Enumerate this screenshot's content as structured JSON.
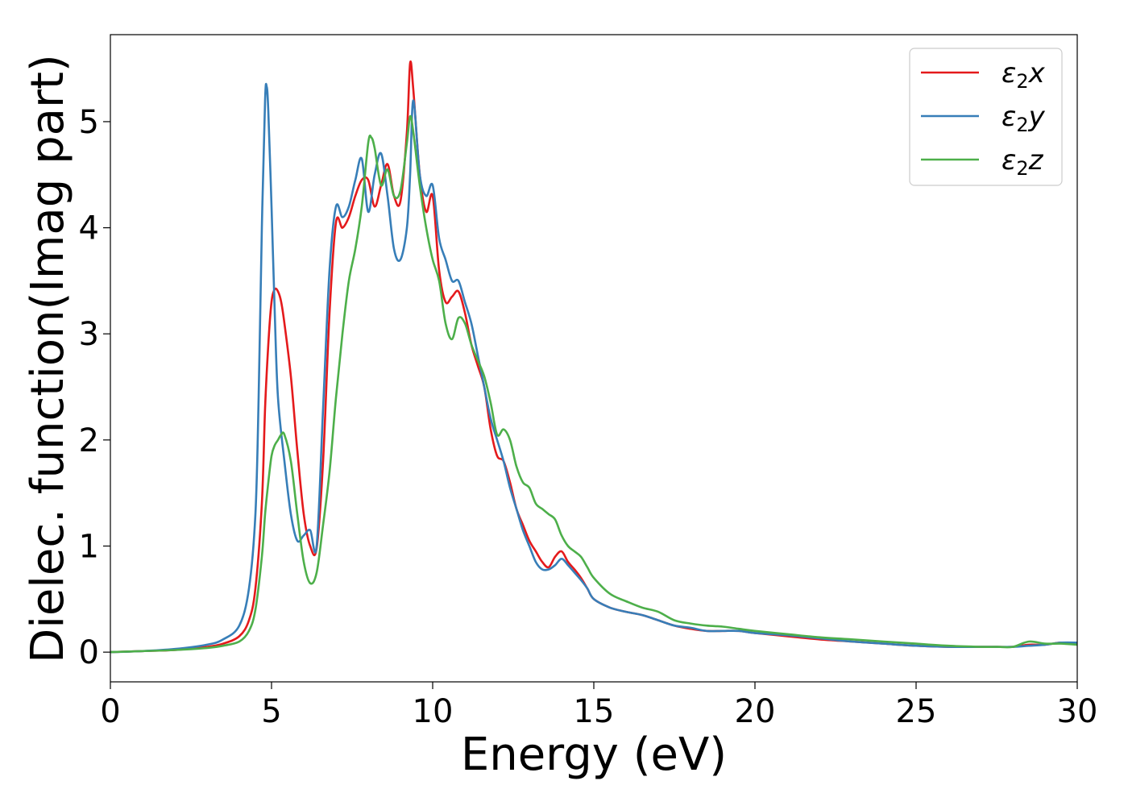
{
  "chart_data": {
    "type": "line",
    "title": "",
    "xlabel": "Energy (eV)",
    "ylabel": "Dielec. function(Imag part)",
    "xlim": [
      0,
      30
    ],
    "ylim": [
      -0.28,
      5.82
    ],
    "xticks": [
      0,
      5,
      10,
      15,
      20,
      25,
      30
    ],
    "yticks": [
      0,
      1,
      2,
      3,
      4,
      5
    ],
    "grid": false,
    "legend_position": "top-right",
    "series": [
      {
        "name": "ε2x",
        "legend_base": "ε",
        "legend_sub": "2",
        "legend_suffix": "x",
        "color": "#e41a1c",
        "x": [
          0,
          1,
          2,
          3,
          3.5,
          4,
          4.3,
          4.5,
          4.7,
          4.8,
          4.9,
          5.0,
          5.1,
          5.2,
          5.3,
          5.4,
          5.6,
          5.8,
          6.0,
          6.2,
          6.4,
          6.6,
          6.8,
          7.0,
          7.2,
          7.4,
          7.6,
          7.8,
          8.0,
          8.2,
          8.4,
          8.6,
          8.8,
          9.0,
          9.2,
          9.3,
          9.4,
          9.6,
          9.8,
          10.0,
          10.2,
          10.4,
          10.6,
          10.8,
          11.0,
          11.2,
          11.4,
          11.6,
          11.8,
          12.0,
          12.2,
          12.4,
          12.6,
          12.8,
          13.0,
          13.2,
          13.4,
          13.6,
          13.8,
          14.0,
          14.2,
          14.4,
          14.6,
          14.8,
          15.0,
          15.5,
          16,
          16.5,
          17,
          17.5,
          18,
          18.5,
          19,
          19.5,
          20,
          21,
          22,
          23,
          24,
          25,
          26,
          27,
          27.5,
          28,
          28.5,
          29,
          29.5,
          30
        ],
        "y": [
          0,
          0.01,
          0.02,
          0.05,
          0.08,
          0.15,
          0.3,
          0.6,
          1.4,
          2.3,
          2.9,
          3.3,
          3.42,
          3.4,
          3.3,
          3.1,
          2.6,
          1.9,
          1.3,
          1.0,
          0.98,
          1.8,
          3.2,
          4.05,
          4.0,
          4.1,
          4.3,
          4.45,
          4.45,
          4.2,
          4.4,
          4.6,
          4.3,
          4.25,
          4.9,
          5.55,
          5.3,
          4.5,
          4.15,
          4.3,
          3.6,
          3.3,
          3.35,
          3.4,
          3.2,
          2.9,
          2.7,
          2.5,
          2.1,
          1.85,
          1.8,
          1.6,
          1.35,
          1.2,
          1.05,
          0.95,
          0.85,
          0.8,
          0.9,
          0.95,
          0.85,
          0.78,
          0.7,
          0.6,
          0.5,
          0.42,
          0.38,
          0.35,
          0.3,
          0.25,
          0.22,
          0.2,
          0.2,
          0.2,
          0.18,
          0.15,
          0.12,
          0.1,
          0.08,
          0.06,
          0.05,
          0.05,
          0.05,
          0.05,
          0.07,
          0.07,
          0.09,
          0.08
        ]
      },
      {
        "name": "ε2y",
        "legend_base": "ε",
        "legend_sub": "2",
        "legend_suffix": "y",
        "color": "#377eb8",
        "x": [
          0,
          1,
          2,
          3,
          3.5,
          4,
          4.3,
          4.5,
          4.6,
          4.7,
          4.8,
          4.85,
          4.9,
          5.0,
          5.1,
          5.2,
          5.4,
          5.6,
          5.8,
          6.0,
          6.2,
          6.4,
          6.6,
          6.8,
          7.0,
          7.2,
          7.4,
          7.6,
          7.8,
          8.0,
          8.2,
          8.4,
          8.6,
          8.8,
          9.0,
          9.2,
          9.3,
          9.4,
          9.6,
          9.8,
          10.0,
          10.2,
          10.4,
          10.6,
          10.8,
          11.0,
          11.2,
          11.4,
          11.6,
          11.8,
          12.0,
          12.2,
          12.4,
          12.6,
          12.8,
          13.0,
          13.2,
          13.4,
          13.6,
          13.8,
          14.0,
          14.2,
          14.4,
          14.6,
          14.8,
          15.0,
          15.5,
          16,
          16.5,
          17,
          17.5,
          18,
          18.5,
          19,
          19.5,
          20,
          21,
          22,
          23,
          24,
          25,
          26,
          27,
          27.5,
          28,
          28.5,
          29,
          29.5,
          30
        ],
        "y": [
          0,
          0.01,
          0.03,
          0.07,
          0.12,
          0.25,
          0.6,
          1.3,
          2.4,
          4.0,
          5.2,
          5.33,
          5.1,
          4.2,
          3.2,
          2.4,
          1.8,
          1.3,
          1.05,
          1.1,
          1.15,
          1.0,
          2.3,
          3.6,
          4.2,
          4.1,
          4.2,
          4.45,
          4.65,
          4.15,
          4.5,
          4.7,
          4.3,
          3.8,
          3.7,
          4.0,
          4.5,
          5.2,
          4.5,
          4.3,
          4.4,
          3.9,
          3.7,
          3.5,
          3.5,
          3.3,
          3.1,
          2.8,
          2.5,
          2.2,
          2.0,
          1.8,
          1.55,
          1.35,
          1.15,
          1.0,
          0.85,
          0.78,
          0.78,
          0.82,
          0.88,
          0.82,
          0.75,
          0.68,
          0.6,
          0.5,
          0.42,
          0.38,
          0.35,
          0.3,
          0.25,
          0.23,
          0.2,
          0.2,
          0.2,
          0.18,
          0.16,
          0.13,
          0.1,
          0.08,
          0.06,
          0.05,
          0.05,
          0.05,
          0.05,
          0.06,
          0.07,
          0.09,
          0.09
        ]
      },
      {
        "name": "ε2z",
        "legend_base": "ε",
        "legend_sub": "2",
        "legend_suffix": "z",
        "color": "#4daf4a",
        "x": [
          0,
          1,
          2,
          3,
          3.5,
          4,
          4.3,
          4.5,
          4.7,
          4.8,
          4.9,
          5.0,
          5.1,
          5.2,
          5.3,
          5.4,
          5.6,
          5.8,
          6.0,
          6.2,
          6.4,
          6.6,
          6.8,
          7.0,
          7.2,
          7.4,
          7.6,
          7.8,
          8.0,
          8.1,
          8.2,
          8.4,
          8.6,
          8.8,
          9.0,
          9.2,
          9.3,
          9.4,
          9.6,
          9.8,
          10.0,
          10.2,
          10.4,
          10.6,
          10.8,
          11.0,
          11.2,
          11.4,
          11.6,
          11.8,
          12.0,
          12.2,
          12.4,
          12.6,
          12.8,
          13.0,
          13.2,
          13.4,
          13.6,
          13.8,
          14.0,
          14.2,
          14.4,
          14.6,
          14.8,
          15.0,
          15.5,
          16,
          16.5,
          17,
          17.5,
          18,
          18.5,
          19,
          19.5,
          20,
          21,
          22,
          23,
          24,
          25,
          26,
          27,
          27.5,
          28,
          28.5,
          29,
          29.5,
          30
        ],
        "y": [
          0,
          0.01,
          0.02,
          0.04,
          0.06,
          0.1,
          0.2,
          0.4,
          0.9,
          1.3,
          1.6,
          1.85,
          1.95,
          2.0,
          2.05,
          2.05,
          1.8,
          1.3,
          0.85,
          0.65,
          0.75,
          1.2,
          1.7,
          2.4,
          3.0,
          3.5,
          3.8,
          4.2,
          4.8,
          4.85,
          4.75,
          4.4,
          4.55,
          4.3,
          4.35,
          4.8,
          5.05,
          4.9,
          4.4,
          4.0,
          3.7,
          3.5,
          3.1,
          2.95,
          3.15,
          3.1,
          2.9,
          2.75,
          2.6,
          2.35,
          2.05,
          2.1,
          2.0,
          1.75,
          1.6,
          1.55,
          1.4,
          1.35,
          1.3,
          1.25,
          1.1,
          1.0,
          0.95,
          0.9,
          0.8,
          0.7,
          0.55,
          0.48,
          0.42,
          0.38,
          0.3,
          0.27,
          0.25,
          0.24,
          0.22,
          0.2,
          0.17,
          0.14,
          0.12,
          0.1,
          0.08,
          0.06,
          0.05,
          0.05,
          0.05,
          0.1,
          0.08,
          0.08,
          0.07
        ]
      }
    ]
  }
}
